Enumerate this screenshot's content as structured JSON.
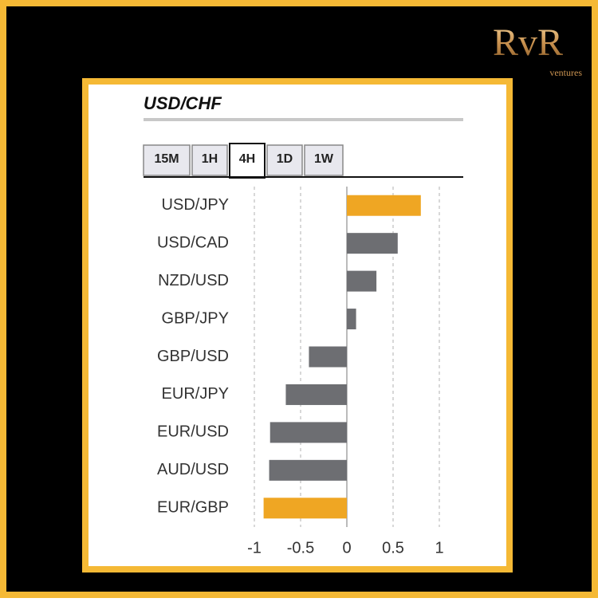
{
  "brand": {
    "name": "RvR",
    "tagline": "ventures"
  },
  "tabs": {
    "items": [
      "15M",
      "1H",
      "4H",
      "1D",
      "1W"
    ],
    "active": "4H"
  },
  "chart_data": {
    "type": "barh",
    "title": "USD/CHF",
    "categories": [
      "USD/JPY",
      "USD/CAD",
      "NZD/USD",
      "GBP/JPY",
      "GBP/USD",
      "EUR/JPY",
      "EUR/USD",
      "AUD/USD",
      "EUR/GBP"
    ],
    "values": [
      0.8,
      0.55,
      0.32,
      0.1,
      -0.41,
      -0.66,
      -0.83,
      -0.84,
      -0.9
    ],
    "colors": [
      "#efa623",
      "#6d6e72",
      "#6d6e72",
      "#6d6e72",
      "#6d6e72",
      "#6d6e72",
      "#6d6e72",
      "#6d6e72",
      "#efa623"
    ],
    "xlim": [
      -1,
      1.25
    ],
    "xticks": [
      -1,
      -0.5,
      0,
      0.5,
      1
    ],
    "grid": true
  }
}
